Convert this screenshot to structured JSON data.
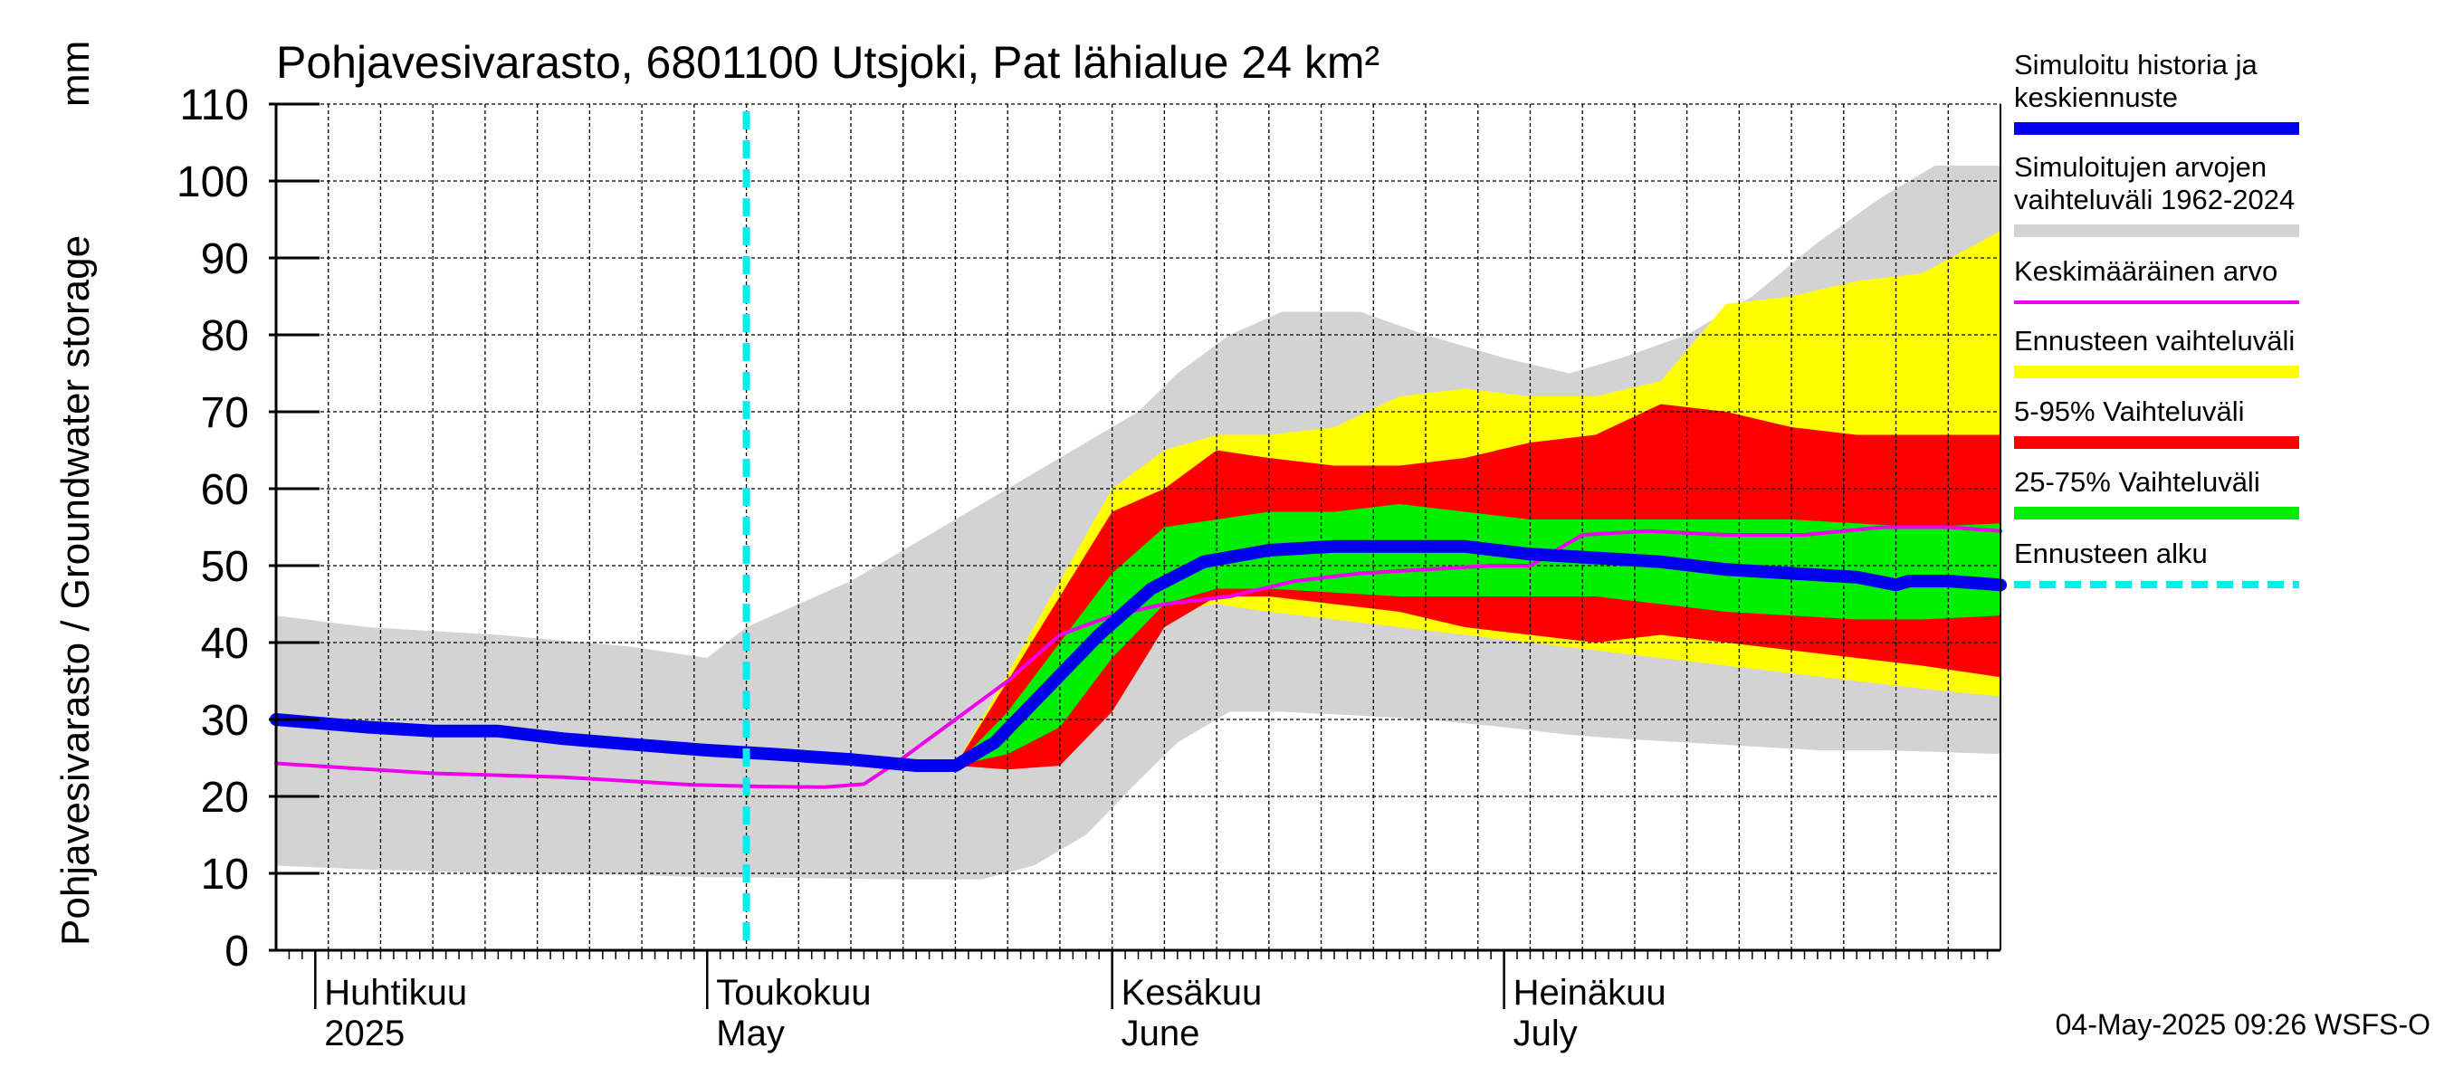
{
  "chart_data": {
    "type": "area",
    "title": "Pohjavesivarasto, 6801100 Utsjoki, Pat lähialue 24 km²",
    "ylabel": "Pohjavesivarasto / Groundwater storage",
    "yunit": "mm",
    "ylim": [
      0,
      110
    ],
    "yticks": [
      0,
      10,
      20,
      30,
      40,
      50,
      60,
      70,
      80,
      90,
      100,
      110
    ],
    "xlim": [
      "2025-03-29",
      "2025-08-08"
    ],
    "grid": true,
    "months": [
      {
        "date": "2025-04-01",
        "fi": "Huhtikuu",
        "en": "2025"
      },
      {
        "date": "2025-05-01",
        "fi": "Toukokuu",
        "en": "May"
      },
      {
        "date": "2025-06-01",
        "fi": "Kesäkuu",
        "en": "June"
      },
      {
        "date": "2025-07-01",
        "fi": "Heinäkuu",
        "en": "July"
      }
    ],
    "forecast_start": "2025-05-04",
    "legend_position": "right",
    "legend": [
      {
        "label": "Simuloitu historia ja keskiennuste",
        "color": "#0000ee",
        "kind": "line-thick"
      },
      {
        "label": "Simuloitujen arvojen vaihteluväli 1962-2024",
        "color": "#d3d3d3",
        "kind": "band"
      },
      {
        "label": "Keskimääräinen arvo",
        "color": "#ee00ee",
        "kind": "line-thin"
      },
      {
        "label": "Ennusteen vaihteluväli",
        "color": "#ffff00",
        "kind": "band"
      },
      {
        "label": "5-95% Vaihteluväli",
        "color": "#ff0000",
        "kind": "band"
      },
      {
        "label": "25-75% Vaihteluväli",
        "color": "#00ee00",
        "kind": "band"
      },
      {
        "label": "Ennusteen alku",
        "color": "#00eeee",
        "kind": "dashed"
      }
    ],
    "bands": {
      "historical_range": {
        "x": [
          "2025-03-29",
          "2025-04-05",
          "2025-04-15",
          "2025-04-25",
          "2025-05-01",
          "2025-05-04",
          "2025-05-08",
          "2025-05-12",
          "2025-05-17",
          "2025-05-22",
          "2025-05-26",
          "2025-05-30",
          "2025-06-03",
          "2025-06-06",
          "2025-06-10",
          "2025-06-14",
          "2025-06-20",
          "2025-06-25",
          "2025-07-01",
          "2025-07-06",
          "2025-07-10",
          "2025-07-15",
          "2025-07-20",
          "2025-07-25",
          "2025-07-30",
          "2025-08-03",
          "2025-08-08"
        ],
        "upper": [
          43.5,
          42,
          41,
          39.5,
          38,
          42,
          45,
          48,
          53,
          58,
          62,
          66,
          70,
          75,
          80,
          83,
          83,
          80,
          77,
          75,
          77,
          80,
          85,
          92,
          98,
          102,
          102
        ],
        "lower": [
          11,
          10.5,
          10,
          9.8,
          9.5,
          9.5,
          9.4,
          9.3,
          9.2,
          9.2,
          11,
          15,
          22,
          27,
          31,
          31,
          30.5,
          30,
          29,
          28,
          27.5,
          27,
          26.5,
          26,
          26,
          25.8,
          25.5
        ]
      },
      "forecast_range": {
        "x": [
          "2025-05-20",
          "2025-05-24",
          "2025-05-28",
          "2025-06-01",
          "2025-06-05",
          "2025-06-09",
          "2025-06-13",
          "2025-06-18",
          "2025-06-23",
          "2025-06-28",
          "2025-07-03",
          "2025-07-08",
          "2025-07-13",
          "2025-07-18",
          "2025-07-23",
          "2025-07-28",
          "2025-08-02",
          "2025-08-08"
        ],
        "upper": [
          24,
          36,
          48,
          60,
          65,
          67,
          67,
          68,
          72,
          73,
          72,
          72,
          74,
          84,
          85,
          87,
          88,
          93.5
        ],
        "lower": [
          24,
          23.5,
          25,
          33,
          44,
          45,
          44,
          43,
          42,
          41,
          40,
          39,
          38,
          37,
          36,
          35,
          34,
          33
        ]
      },
      "p5_p95": {
        "x": [
          "2025-05-20",
          "2025-05-24",
          "2025-05-28",
          "2025-06-01",
          "2025-06-05",
          "2025-06-09",
          "2025-06-13",
          "2025-06-18",
          "2025-06-23",
          "2025-06-28",
          "2025-07-03",
          "2025-07-08",
          "2025-07-13",
          "2025-07-18",
          "2025-07-23",
          "2025-07-28",
          "2025-08-02",
          "2025-08-08"
        ],
        "upper": [
          24,
          35,
          46,
          57,
          60,
          65,
          64,
          63,
          63,
          64,
          66,
          67,
          71,
          70,
          68,
          67,
          67,
          67
        ],
        "lower": [
          24,
          23.5,
          24,
          31,
          42,
          46,
          46,
          45,
          44,
          42,
          41,
          40,
          41,
          40,
          39,
          38,
          37,
          35.5
        ]
      },
      "p25_p75": {
        "x": [
          "2025-05-20",
          "2025-05-24",
          "2025-05-28",
          "2025-06-01",
          "2025-06-05",
          "2025-06-09",
          "2025-06-13",
          "2025-06-18",
          "2025-06-23",
          "2025-06-28",
          "2025-07-03",
          "2025-07-08",
          "2025-07-13",
          "2025-07-18",
          "2025-07-23",
          "2025-07-28",
          "2025-08-02",
          "2025-08-08"
        ],
        "upper": [
          24,
          31,
          40,
          49,
          55,
          56,
          57,
          57,
          58,
          57,
          56,
          56,
          56,
          56,
          56,
          55.5,
          55,
          55.5
        ],
        "lower": [
          24,
          25.5,
          29,
          38,
          45,
          47,
          47,
          46.5,
          46,
          46,
          46,
          46,
          45,
          44,
          43.5,
          43,
          43,
          43.5
        ]
      }
    },
    "series": [
      {
        "name": "Simuloitu historia ja keskiennuste",
        "x": [
          "2025-03-29",
          "2025-04-05",
          "2025-04-10",
          "2025-04-15",
          "2025-04-20",
          "2025-04-25",
          "2025-05-01",
          "2025-05-06",
          "2025-05-12",
          "2025-05-17",
          "2025-05-20",
          "2025-05-23",
          "2025-05-27",
          "2025-05-31",
          "2025-06-04",
          "2025-06-08",
          "2025-06-13",
          "2025-06-18",
          "2025-06-23",
          "2025-06-28",
          "2025-07-03",
          "2025-07-08",
          "2025-07-13",
          "2025-07-18",
          "2025-07-23",
          "2025-07-28",
          "2025-07-31",
          "2025-08-01",
          "2025-08-04",
          "2025-08-08"
        ],
        "y": [
          30,
          29,
          28.5,
          28.5,
          27.5,
          26.8,
          26,
          25.5,
          24.8,
          24,
          24,
          27,
          34,
          41,
          47,
          50.5,
          52,
          52.5,
          52.5,
          52.5,
          51.5,
          51,
          50.5,
          49.5,
          49,
          48.5,
          47.5,
          48,
          48,
          47.5
        ]
      },
      {
        "name": "Keskimääräinen arvo",
        "x": [
          "2025-03-29",
          "2025-04-10",
          "2025-04-20",
          "2025-04-30",
          "2025-05-05",
          "2025-05-10",
          "2025-05-13",
          "2025-05-16",
          "2025-05-20",
          "2025-05-24",
          "2025-05-28",
          "2025-06-01",
          "2025-06-05",
          "2025-06-10",
          "2025-06-15",
          "2025-06-20",
          "2025-06-25",
          "2025-06-30",
          "2025-07-03",
          "2025-07-07",
          "2025-07-12",
          "2025-07-18",
          "2025-07-24",
          "2025-07-30",
          "2025-08-04",
          "2025-08-08"
        ],
        "y": [
          24.3,
          23,
          22.5,
          21.5,
          21.3,
          21.2,
          21.6,
          25,
          30,
          35,
          41,
          43.5,
          45,
          46,
          48,
          49,
          49.5,
          50,
          50,
          54,
          54.5,
          54,
          54,
          55,
          55,
          54.5
        ]
      }
    ]
  },
  "footer": {
    "timestamp": "04-May-2025 09:26 WSFS-O"
  }
}
